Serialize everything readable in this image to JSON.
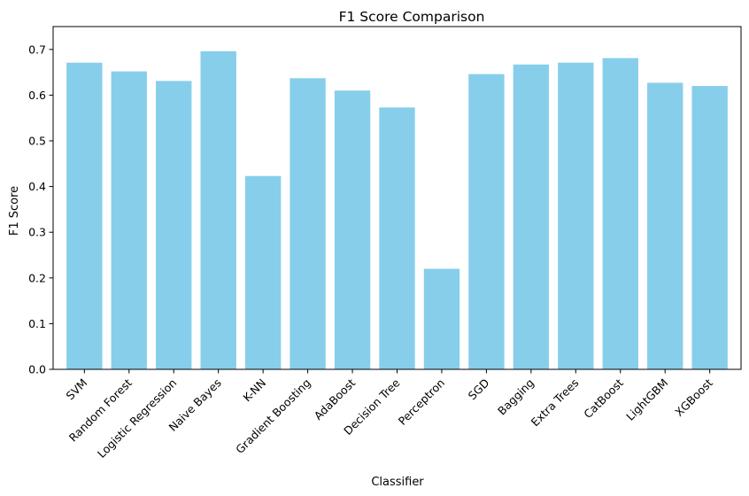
{
  "chart_data": {
    "type": "bar",
    "title": "F1 Score Comparison",
    "xlabel": "Classifier",
    "ylabel": "F1 Score",
    "categories": [
      "SVM",
      "Random Forest",
      "Logistic Regression",
      "Naive Bayes",
      "K-NN",
      "Gradient Boosting",
      "AdaBoost",
      "Decision Tree",
      "Perceptron",
      "SGD",
      "Bagging",
      "Extra Trees",
      "CatBoost",
      "LightGBM",
      "XGBoost"
    ],
    "values": [
      0.671,
      0.652,
      0.631,
      0.696,
      0.423,
      0.637,
      0.61,
      0.573,
      0.22,
      0.646,
      0.667,
      0.671,
      0.681,
      0.627,
      0.62
    ],
    "ylim": [
      0,
      0.75
    ],
    "yticks": [
      0.0,
      0.1,
      0.2,
      0.3,
      0.4,
      0.5,
      0.6,
      0.7
    ],
    "ytick_labels": [
      "0.0",
      "0.1",
      "0.2",
      "0.3",
      "0.4",
      "0.5",
      "0.6",
      "0.7"
    ],
    "bar_color": "#87CEEB",
    "grid": false,
    "legend": "none"
  }
}
